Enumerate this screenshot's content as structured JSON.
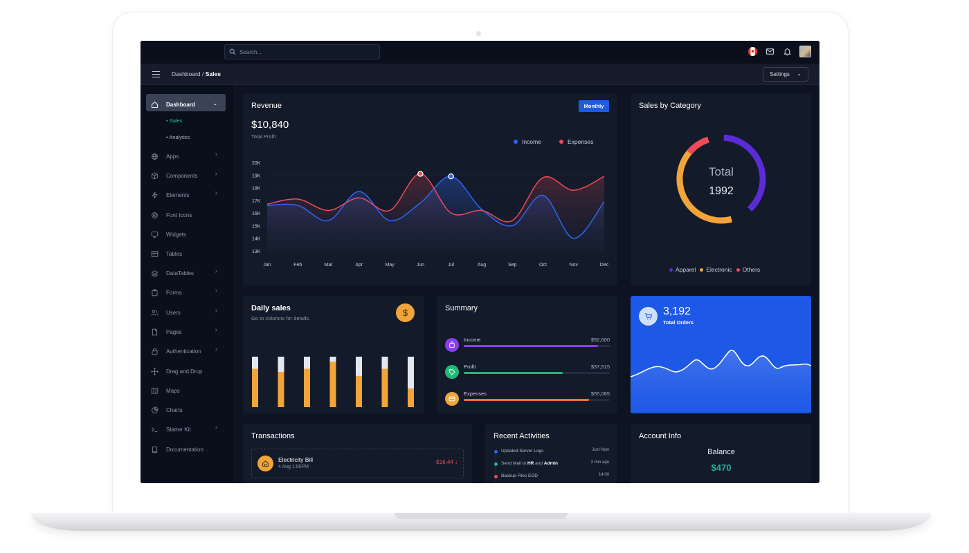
{
  "search": {
    "placeholder": "Search..."
  },
  "breadcrumb": {
    "root": "Dashboard",
    "separator": "/",
    "current": "Sales"
  },
  "settings_label": "Settings",
  "sidebar": {
    "items": [
      {
        "label": "Dashboard",
        "icon": "home-icon",
        "has_children": true,
        "active": true
      },
      {
        "label": "Apps",
        "icon": "globe-icon",
        "has_children": true
      },
      {
        "label": "Components",
        "icon": "cube-icon",
        "has_children": true
      },
      {
        "label": "Elements",
        "icon": "bolt-icon",
        "has_children": true
      },
      {
        "label": "Font Icons",
        "icon": "target-icon",
        "has_children": false
      },
      {
        "label": "Widgets",
        "icon": "monitor-icon",
        "has_children": false
      },
      {
        "label": "Tables",
        "icon": "table-icon",
        "has_children": false
      },
      {
        "label": "DataTables",
        "icon": "layers-icon",
        "has_children": true
      },
      {
        "label": "Forms",
        "icon": "clipboard-icon",
        "has_children": true
      },
      {
        "label": "Users",
        "icon": "users-icon",
        "has_children": true
      },
      {
        "label": "Pages",
        "icon": "file-icon",
        "has_children": true
      },
      {
        "label": "Authentication",
        "icon": "lock-icon",
        "has_children": true
      },
      {
        "label": "Drag and Drop",
        "icon": "move-icon",
        "has_children": false
      },
      {
        "label": "Maps",
        "icon": "map-icon",
        "has_children": false
      },
      {
        "label": "Charts",
        "icon": "pie-icon",
        "has_children": false
      },
      {
        "label": "Starter Kit",
        "icon": "terminal-icon",
        "has_children": true
      },
      {
        "label": "Documentation",
        "icon": "book-icon",
        "has_children": false
      }
    ],
    "subitems": [
      {
        "label": "Sales",
        "current": true
      },
      {
        "label": "Analytics",
        "current": false
      }
    ]
  },
  "revenue": {
    "title": "Revenue",
    "period_button": "Monthly",
    "total": "$10,840",
    "caption": "Total Profit",
    "legend": [
      {
        "name": "Income",
        "color": "#2e66f5"
      },
      {
        "name": "Expenses",
        "color": "#ef4b57"
      }
    ]
  },
  "chart_data": {
    "type": "line",
    "categories": [
      "Jan",
      "Feb",
      "Mar",
      "Apr",
      "May",
      "Jun",
      "Jul",
      "Aug",
      "Sep",
      "Oct",
      "Nov",
      "Dec"
    ],
    "y_ticks": [
      "20K",
      "19K",
      "18K",
      "17K",
      "16K",
      "15K",
      "14K",
      "13K"
    ],
    "ylim": [
      13000,
      20000
    ],
    "series": [
      {
        "name": "Income",
        "color": "#2e66f5",
        "values": [
          16600,
          16600,
          15400,
          17700,
          15400,
          16800,
          18900,
          16300,
          15000,
          17400,
          14000,
          16900
        ]
      },
      {
        "name": "Expenses",
        "color": "#ef4b57",
        "values": [
          16700,
          17100,
          16200,
          17200,
          16200,
          19100,
          16000,
          16200,
          15400,
          18800,
          17800,
          18900
        ]
      }
    ],
    "highlighted_points": [
      {
        "series": "Expenses",
        "category": "Jun"
      },
      {
        "series": "Income",
        "category": "Jul"
      }
    ],
    "grid": true,
    "legend_position": "top-right"
  },
  "sales_by_category": {
    "title": "Sales by Category",
    "center_label": "Total",
    "total": "1992",
    "segments": [
      {
        "name": "Apparel",
        "color": "#5b2bd6",
        "share": 0.37
      },
      {
        "name": "Electronic",
        "color": "#f0a43a",
        "share": 0.44
      },
      {
        "name": "Others",
        "color": "#ef4b57",
        "share": 0.09
      }
    ]
  },
  "daily_sales": {
    "title": "Daily sales",
    "caption": "Go to columns for details.",
    "icon": "dollar-icon",
    "bar_fill_fractions": [
      0.76,
      0.7,
      0.76,
      0.9,
      0.62,
      0.76,
      0.37
    ],
    "colors": {
      "fill": "#f0a43a",
      "rest": "#e4e7ee"
    }
  },
  "summary": {
    "title": "Summary",
    "rows": [
      {
        "label": "Income",
        "value": "$92,600",
        "progress": 0.92,
        "color": "#8b3df0",
        "icon": "bag-icon"
      },
      {
        "label": "Profit",
        "value": "$37,515",
        "progress": 0.68,
        "color": "#21b978",
        "icon": "tag-icon"
      },
      {
        "label": "Expenses",
        "value": "$55,085",
        "progress": 0.86,
        "color": "#f0713a",
        "icon": "card-icon"
      }
    ]
  },
  "orders": {
    "count": "3,192",
    "label": "Total Orders",
    "icon": "cart-icon"
  },
  "transactions": {
    "title": "Transactions",
    "items": [
      {
        "name": "Electricity Bill",
        "date": "4 Aug 1:00PM",
        "amount": "-$16.44",
        "icon": "home-icon"
      }
    ]
  },
  "recent_activities": {
    "title": "Recent Activities",
    "items": [
      {
        "text_before": "Updated Server Logs",
        "bold1": "",
        "mid": "",
        "bold2": "",
        "time": "Just Now",
        "color": "#2e66f5"
      },
      {
        "text_before": "Send Mail to ",
        "bold1": "HR",
        "mid": " and ",
        "bold2": "Admin",
        "time": "2 min ago",
        "color": "#21b978"
      },
      {
        "text_before": "Backup Files EOD",
        "bold1": "",
        "mid": "",
        "bold2": "",
        "time": "14:00",
        "color": "#ef4b57"
      }
    ]
  },
  "account_info": {
    "title": "Account Info",
    "balance_label": "Balance",
    "balance": "$470"
  }
}
